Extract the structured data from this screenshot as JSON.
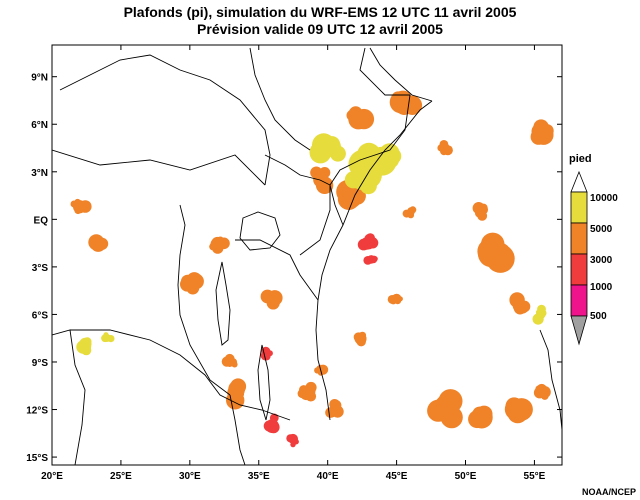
{
  "title_line1": "Plafonds (pi), simulation du WRF-EMS 12 UTC 11 avril 2005",
  "title_line2": "Prévision valide 09 UTC 12 avril 2005",
  "credit": "NOAA/NCEP",
  "map": {
    "lon_range": [
      20,
      57
    ],
    "lat_range": [
      -15.5,
      11
    ],
    "lat_ticks": [
      {
        "value": 9,
        "label": "9°N"
      },
      {
        "value": 6,
        "label": "6°N"
      },
      {
        "value": 3,
        "label": "3°N"
      },
      {
        "value": 0,
        "label": "EQ"
      },
      {
        "value": -3,
        "label": "3°S"
      },
      {
        "value": -6,
        "label": "6°S"
      },
      {
        "value": -9,
        "label": "9°S"
      },
      {
        "value": -12,
        "label": "12°S"
      },
      {
        "value": -15,
        "label": "15°S"
      }
    ],
    "lon_ticks": [
      {
        "value": 20,
        "label": "20°E"
      },
      {
        "value": 25,
        "label": "25°E"
      },
      {
        "value": 30,
        "label": "30°E"
      },
      {
        "value": 35,
        "label": "35°E"
      },
      {
        "value": 40,
        "label": "40°E"
      },
      {
        "value": 45,
        "label": "45°E"
      },
      {
        "value": 50,
        "label": "50°E"
      },
      {
        "value": 55,
        "label": "55°E"
      }
    ]
  },
  "legend": {
    "title": "pied",
    "levels": [
      {
        "label": "10000",
        "color": "#e6dc3c"
      },
      {
        "label": "5000",
        "color": "#f08228"
      },
      {
        "label": "3000",
        "color": "#f03c3c"
      },
      {
        "label": "1000",
        "color": "#f0148c"
      },
      {
        "label": "500",
        "color": "#a0a0a0"
      }
    ]
  },
  "colors": {
    "high": "#e6dc3c",
    "mid": "#f08228",
    "low": "#f03c3c",
    "very_low": "#f0148c",
    "lowest": "#a0a0a0"
  },
  "cloud_patches": [
    {
      "lon": 45.5,
      "lat": 7.5,
      "r": 1.2,
      "level": "mid"
    },
    {
      "lon": 42.0,
      "lat": 6.5,
      "r": 1.0,
      "level": "mid"
    },
    {
      "lon": 40.0,
      "lat": 4.5,
      "r": 1.3,
      "level": "high"
    },
    {
      "lon": 43.0,
      "lat": 3.5,
      "r": 1.5,
      "level": "high"
    },
    {
      "lon": 44.5,
      "lat": 4.0,
      "r": 1.0,
      "level": "high"
    },
    {
      "lon": 39.5,
      "lat": 2.5,
      "r": 1.0,
      "level": "mid"
    },
    {
      "lon": 41.5,
      "lat": 1.5,
      "r": 1.2,
      "level": "mid"
    },
    {
      "lon": 42.5,
      "lat": 2.5,
      "r": 1.0,
      "level": "high"
    },
    {
      "lon": 43.0,
      "lat": -1.5,
      "r": 0.6,
      "level": "low"
    },
    {
      "lon": 43.2,
      "lat": -2.5,
      "r": 0.5,
      "level": "low"
    },
    {
      "lon": 46.0,
      "lat": 0.5,
      "r": 0.5,
      "level": "mid"
    },
    {
      "lon": 52.0,
      "lat": -2.0,
      "r": 1.5,
      "level": "mid"
    },
    {
      "lon": 51.0,
      "lat": 0.5,
      "r": 0.6,
      "level": "mid"
    },
    {
      "lon": 55.5,
      "lat": 5.5,
      "r": 1.0,
      "level": "mid"
    },
    {
      "lon": 55.5,
      "lat": -6.0,
      "r": 0.6,
      "level": "high"
    },
    {
      "lon": 54.0,
      "lat": -5.5,
      "r": 0.8,
      "level": "mid"
    },
    {
      "lon": 22.0,
      "lat": 0.8,
      "r": 0.7,
      "level": "mid"
    },
    {
      "lon": 23.5,
      "lat": -1.5,
      "r": 0.8,
      "level": "mid"
    },
    {
      "lon": 22.5,
      "lat": -8.0,
      "r": 0.7,
      "level": "high"
    },
    {
      "lon": 24.0,
      "lat": -7.5,
      "r": 0.5,
      "level": "high"
    },
    {
      "lon": 30.0,
      "lat": -4.0,
      "r": 0.8,
      "level": "mid"
    },
    {
      "lon": 32.0,
      "lat": -1.5,
      "r": 0.7,
      "level": "mid"
    },
    {
      "lon": 36.0,
      "lat": -5.0,
      "r": 0.8,
      "level": "mid"
    },
    {
      "lon": 35.5,
      "lat": -8.5,
      "r": 0.5,
      "level": "low"
    },
    {
      "lon": 33.5,
      "lat": -11.0,
      "r": 0.9,
      "level": "mid"
    },
    {
      "lon": 36.0,
      "lat": -13.0,
      "r": 0.8,
      "level": "low"
    },
    {
      "lon": 38.5,
      "lat": -11.0,
      "r": 0.8,
      "level": "mid"
    },
    {
      "lon": 40.5,
      "lat": -12.0,
      "r": 0.6,
      "level": "mid"
    },
    {
      "lon": 48.5,
      "lat": -12.0,
      "r": 1.3,
      "level": "mid"
    },
    {
      "lon": 51.0,
      "lat": -12.5,
      "r": 1.1,
      "level": "mid"
    },
    {
      "lon": 54.0,
      "lat": -12.0,
      "r": 1.2,
      "level": "mid"
    },
    {
      "lon": 55.5,
      "lat": -11.0,
      "r": 0.6,
      "level": "mid"
    },
    {
      "lon": 48.5,
      "lat": 4.5,
      "r": 0.5,
      "level": "mid"
    },
    {
      "lon": 45.0,
      "lat": -5.0,
      "r": 0.5,
      "level": "mid"
    },
    {
      "lon": 42.5,
      "lat": -7.5,
      "r": 0.6,
      "level": "mid"
    },
    {
      "lon": 39.5,
      "lat": -9.5,
      "r": 0.5,
      "level": "mid"
    },
    {
      "lon": 33.0,
      "lat": -9.0,
      "r": 0.5,
      "level": "mid"
    },
    {
      "lon": 37.5,
      "lat": -14.0,
      "r": 0.5,
      "level": "low"
    }
  ]
}
